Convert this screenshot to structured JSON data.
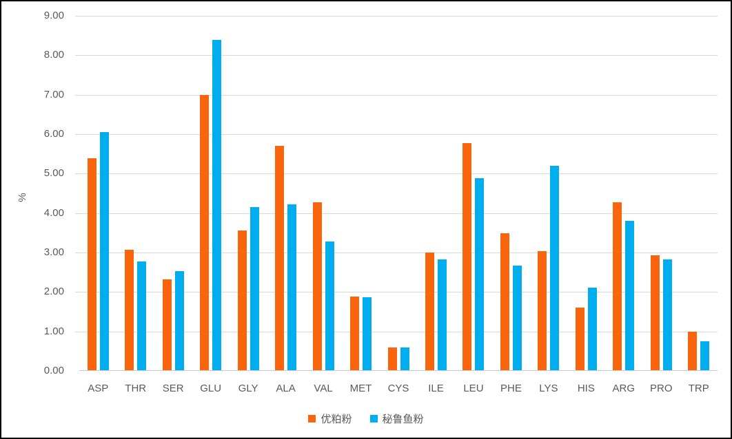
{
  "chart_data": {
    "type": "bar",
    "title": "",
    "ylabel": "%",
    "xlabel": "",
    "ylim": [
      0,
      9
    ],
    "ytick_step": 1,
    "ytick_decimals": 2,
    "grid": true,
    "legend_position": "bottom",
    "categories": [
      "ASP",
      "THR",
      "SER",
      "GLU",
      "GLY",
      "ALA",
      "VAL",
      "MET",
      "CYS",
      "ILE",
      "LEU",
      "PHE",
      "LYS",
      "HIS",
      "ARG",
      "PRO",
      "TRP"
    ],
    "series": [
      {
        "name": "优粕粉",
        "color": "#f8650c",
        "values": [
          5.38,
          3.06,
          2.31,
          6.98,
          3.54,
          5.68,
          4.26,
          1.87,
          0.57,
          2.99,
          5.75,
          3.47,
          3.02,
          1.59,
          4.26,
          2.91,
          0.97
        ]
      },
      {
        "name": "秘鲁鱼粉",
        "color": "#00aeef",
        "values": [
          6.04,
          2.76,
          2.52,
          8.37,
          4.14,
          4.2,
          3.27,
          1.85,
          0.57,
          2.8,
          4.87,
          2.66,
          5.18,
          2.1,
          3.79,
          2.8,
          0.73
        ]
      }
    ]
  },
  "colors": {
    "gridline": "#d9d9d9",
    "axis_text": "#595959",
    "frame_border": "#000000",
    "background": "#ffffff"
  }
}
